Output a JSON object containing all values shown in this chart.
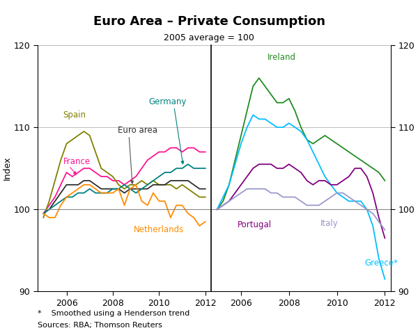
{
  "title": "Euro Area – Private Consumption",
  "subtitle": "2005 average = 100",
  "ylabel_left": "Index",
  "ylabel_right": "Index",
  "ylim": [
    90,
    120
  ],
  "yticks": [
    90,
    100,
    110,
    120
  ],
  "footnote1": "*    Smoothed using a Henderson trend",
  "footnote2": "Sources: RBA; Thomson Reuters",
  "hline_y": 100,
  "left_panel": {
    "xmin": 2004.75,
    "xmax": 2012.25,
    "xticks": [
      2006,
      2008,
      2010,
      2012
    ],
    "series": {
      "France": {
        "color": "#FF1493",
        "x": [
          2005.0,
          2005.25,
          2005.5,
          2005.75,
          2006.0,
          2006.25,
          2006.5,
          2006.75,
          2007.0,
          2007.25,
          2007.5,
          2007.75,
          2008.0,
          2008.25,
          2008.5,
          2008.75,
          2009.0,
          2009.25,
          2009.5,
          2009.75,
          2010.0,
          2010.25,
          2010.5,
          2010.75,
          2011.0,
          2011.25,
          2011.5,
          2011.75,
          2012.0
        ],
        "y": [
          99.5,
          100.5,
          101.5,
          103.0,
          104.5,
          104.0,
          104.5,
          105.0,
          105.0,
          104.5,
          104.0,
          104.0,
          103.5,
          103.5,
          103.0,
          103.5,
          104.0,
          105.0,
          106.0,
          106.5,
          107.0,
          107.0,
          107.5,
          107.5,
          107.0,
          107.5,
          107.5,
          107.0,
          107.0
        ]
      },
      "Spain": {
        "color": "#808000",
        "x": [
          2005.0,
          2005.25,
          2005.5,
          2005.75,
          2006.0,
          2006.25,
          2006.5,
          2006.75,
          2007.0,
          2007.25,
          2007.5,
          2007.75,
          2008.0,
          2008.25,
          2008.5,
          2008.75,
          2009.0,
          2009.25,
          2009.5,
          2009.75,
          2010.0,
          2010.25,
          2010.5,
          2010.75,
          2011.0,
          2011.25,
          2011.5,
          2011.75,
          2012.0
        ],
        "y": [
          99.0,
          101.0,
          103.5,
          106.0,
          108.0,
          108.5,
          109.0,
          109.5,
          109.0,
          107.0,
          105.0,
          104.5,
          104.0,
          103.0,
          102.5,
          103.0,
          103.0,
          103.5,
          103.0,
          103.5,
          103.0,
          103.0,
          103.0,
          102.5,
          103.0,
          102.5,
          102.0,
          101.5,
          101.5
        ]
      },
      "Euro area": {
        "color": "#2F2F2F",
        "x": [
          2005.0,
          2005.25,
          2005.5,
          2005.75,
          2006.0,
          2006.25,
          2006.5,
          2006.75,
          2007.0,
          2007.25,
          2007.5,
          2007.75,
          2008.0,
          2008.25,
          2008.5,
          2008.75,
          2009.0,
          2009.25,
          2009.5,
          2009.75,
          2010.0,
          2010.25,
          2010.5,
          2010.75,
          2011.0,
          2011.25,
          2011.5,
          2011.75,
          2012.0
        ],
        "y": [
          99.5,
          100.0,
          101.0,
          102.0,
          103.0,
          103.0,
          103.0,
          103.5,
          103.5,
          103.0,
          102.5,
          102.5,
          102.5,
          102.5,
          102.0,
          102.5,
          102.5,
          102.5,
          102.5,
          103.0,
          103.0,
          103.0,
          103.5,
          103.5,
          103.5,
          103.5,
          103.0,
          102.5,
          102.5
        ]
      },
      "Germany": {
        "color": "#008080",
        "x": [
          2005.0,
          2005.25,
          2005.5,
          2005.75,
          2006.0,
          2006.25,
          2006.5,
          2006.75,
          2007.0,
          2007.25,
          2007.5,
          2007.75,
          2008.0,
          2008.25,
          2008.5,
          2008.75,
          2009.0,
          2009.25,
          2009.5,
          2009.75,
          2010.0,
          2010.25,
          2010.5,
          2010.75,
          2011.0,
          2011.25,
          2011.5,
          2011.75,
          2012.0
        ],
        "y": [
          99.5,
          100.0,
          100.5,
          101.0,
          101.5,
          101.5,
          102.0,
          102.0,
          102.5,
          102.0,
          102.0,
          102.0,
          102.5,
          102.5,
          103.0,
          102.5,
          102.0,
          102.5,
          103.0,
          103.5,
          104.0,
          104.5,
          104.5,
          105.0,
          105.0,
          105.5,
          105.0,
          105.0,
          105.0
        ]
      },
      "Netherlands": {
        "color": "#FF8C00",
        "x": [
          2005.0,
          2005.25,
          2005.5,
          2005.75,
          2006.0,
          2006.25,
          2006.5,
          2006.75,
          2007.0,
          2007.25,
          2007.5,
          2007.75,
          2008.0,
          2008.25,
          2008.5,
          2008.75,
          2009.0,
          2009.25,
          2009.5,
          2009.75,
          2010.0,
          2010.25,
          2010.5,
          2010.75,
          2011.0,
          2011.25,
          2011.5,
          2011.75,
          2012.0
        ],
        "y": [
          99.5,
          99.0,
          99.0,
          100.5,
          101.5,
          102.0,
          102.5,
          103.0,
          103.0,
          102.5,
          102.0,
          102.0,
          102.0,
          102.5,
          100.5,
          102.5,
          103.0,
          101.0,
          100.5,
          102.0,
          101.0,
          101.0,
          99.0,
          100.5,
          100.5,
          99.5,
          99.0,
          98.0,
          98.5
        ]
      }
    }
  },
  "right_panel": {
    "xmin": 2004.75,
    "xmax": 2012.25,
    "xticks": [
      2006,
      2008,
      2010,
      2012
    ],
    "series": {
      "Ireland": {
        "color": "#228B22",
        "x": [
          2005.0,
          2005.25,
          2005.5,
          2005.75,
          2006.0,
          2006.25,
          2006.5,
          2006.75,
          2007.0,
          2007.25,
          2007.5,
          2007.75,
          2008.0,
          2008.25,
          2008.5,
          2008.75,
          2009.0,
          2009.25,
          2009.5,
          2009.75,
          2010.0,
          2010.25,
          2010.5,
          2010.75,
          2011.0,
          2011.25,
          2011.5,
          2011.75,
          2012.0
        ],
        "y": [
          100.0,
          101.0,
          103.0,
          106.0,
          109.0,
          112.0,
          115.0,
          116.0,
          115.0,
          114.0,
          113.0,
          113.0,
          113.5,
          112.0,
          110.0,
          108.5,
          108.0,
          108.5,
          109.0,
          108.5,
          108.0,
          107.5,
          107.0,
          106.5,
          106.0,
          105.5,
          105.0,
          104.5,
          103.5
        ]
      },
      "Greece": {
        "color": "#00BFFF",
        "x": [
          2005.0,
          2005.25,
          2005.5,
          2005.75,
          2006.0,
          2006.25,
          2006.5,
          2006.75,
          2007.0,
          2007.25,
          2007.5,
          2007.75,
          2008.0,
          2008.25,
          2008.5,
          2008.75,
          2009.0,
          2009.25,
          2009.5,
          2009.75,
          2010.0,
          2010.25,
          2010.5,
          2010.75,
          2011.0,
          2011.25,
          2011.5,
          2011.75,
          2012.0
        ],
        "y": [
          100.0,
          101.5,
          103.0,
          105.5,
          108.0,
          110.0,
          111.5,
          111.0,
          111.0,
          110.5,
          110.0,
          110.0,
          110.5,
          110.0,
          109.5,
          108.5,
          107.0,
          105.5,
          104.0,
          103.0,
          102.0,
          101.5,
          101.0,
          101.0,
          101.0,
          100.0,
          98.0,
          94.0,
          91.5
        ]
      },
      "Portugal": {
        "color": "#800080",
        "x": [
          2005.0,
          2005.25,
          2005.5,
          2005.75,
          2006.0,
          2006.25,
          2006.5,
          2006.75,
          2007.0,
          2007.25,
          2007.5,
          2007.75,
          2008.0,
          2008.25,
          2008.5,
          2008.75,
          2009.0,
          2009.25,
          2009.5,
          2009.75,
          2010.0,
          2010.25,
          2010.5,
          2010.75,
          2011.0,
          2011.25,
          2011.5,
          2011.75,
          2012.0
        ],
        "y": [
          100.0,
          100.5,
          101.0,
          102.0,
          103.0,
          104.0,
          105.0,
          105.5,
          105.5,
          105.5,
          105.0,
          105.0,
          105.5,
          105.0,
          104.5,
          103.5,
          103.0,
          103.5,
          103.5,
          103.0,
          103.0,
          103.5,
          104.0,
          105.0,
          105.0,
          104.0,
          102.0,
          99.0,
          96.5
        ]
      },
      "Italy": {
        "color": "#9999CC",
        "x": [
          2005.0,
          2005.25,
          2005.5,
          2005.75,
          2006.0,
          2006.25,
          2006.5,
          2006.75,
          2007.0,
          2007.25,
          2007.5,
          2007.75,
          2008.0,
          2008.25,
          2008.5,
          2008.75,
          2009.0,
          2009.25,
          2009.5,
          2009.75,
          2010.0,
          2010.25,
          2010.5,
          2010.75,
          2011.0,
          2011.25,
          2011.5,
          2011.75,
          2012.0
        ],
        "y": [
          100.0,
          100.5,
          101.0,
          101.5,
          102.0,
          102.5,
          102.5,
          102.5,
          102.5,
          102.0,
          102.0,
          101.5,
          101.5,
          101.5,
          101.0,
          100.5,
          100.5,
          100.5,
          101.0,
          101.5,
          102.0,
          102.0,
          101.5,
          101.0,
          100.5,
          100.0,
          99.5,
          98.5,
          97.5
        ]
      }
    }
  }
}
